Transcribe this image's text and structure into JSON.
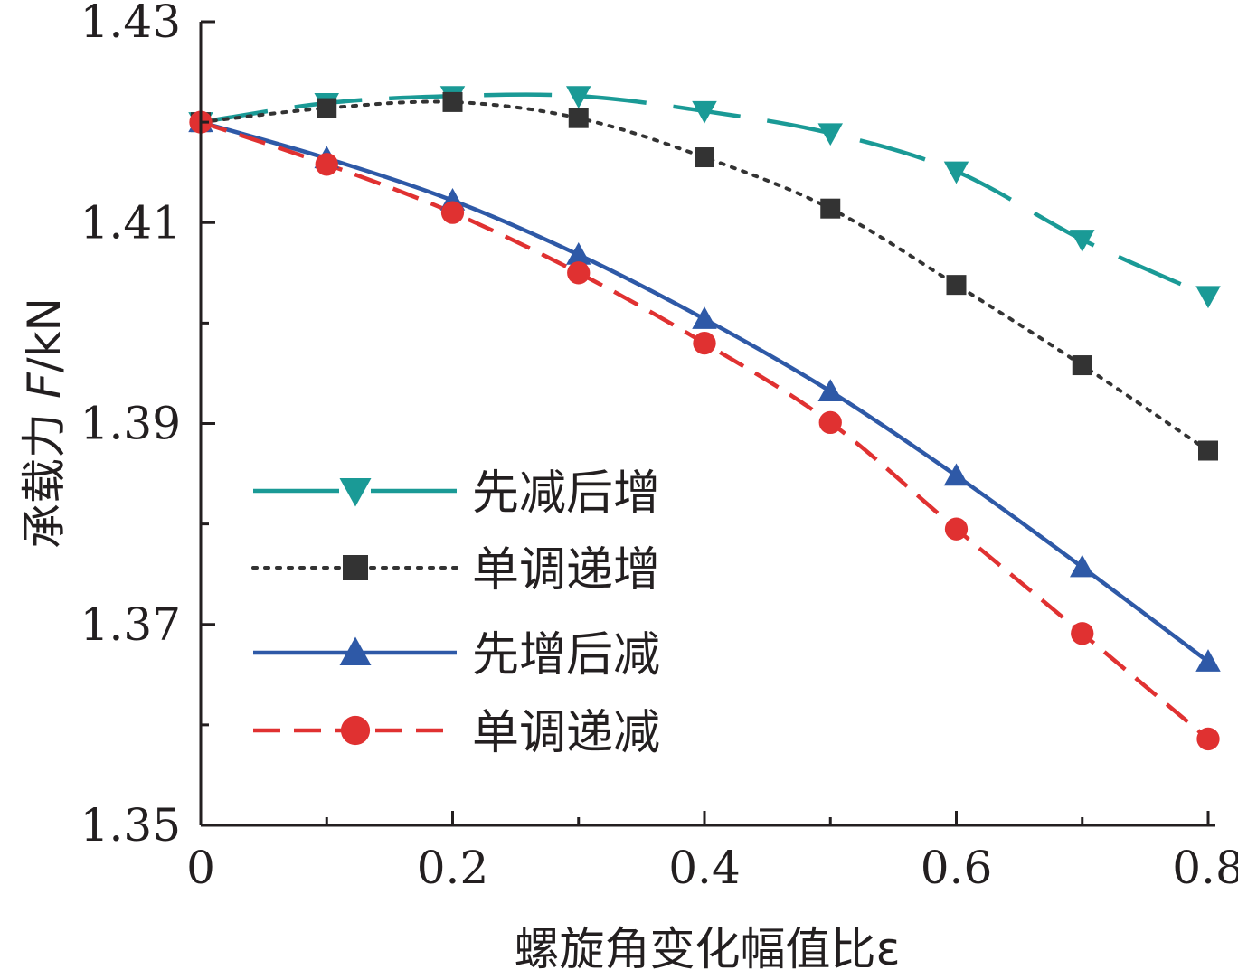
{
  "chart_data": {
    "type": "line",
    "xlabel": "螺旋角变化幅值比ε",
    "ylabel_prefix": "承载力 ",
    "ylabel_var": "F",
    "ylabel_unit": "/kN",
    "xlim": [
      0,
      0.8
    ],
    "ylim": [
      1.35,
      1.43
    ],
    "x_ticks": [
      "0",
      "0.2",
      "0.4",
      "0.6",
      "0.8"
    ],
    "y_ticks": [
      "1.35",
      "1.37",
      "1.39",
      "1.41",
      "1.43"
    ],
    "grid": false,
    "legend_position": "lower-left",
    "x": [
      0,
      0.1,
      0.2,
      0.3,
      0.4,
      0.5,
      0.6,
      0.7,
      0.8
    ],
    "series": [
      {
        "name": "先减后增",
        "color": "#1a9a96",
        "marker": "triangle-down",
        "line_style": "long-dash",
        "values": [
          1.42,
          1.4219,
          1.4226,
          1.4226,
          1.4211,
          1.4189,
          1.4151,
          1.4083,
          1.4027
        ]
      },
      {
        "name": "单调递增",
        "color": "#333333",
        "marker": "square",
        "line_style": "dotted",
        "values": [
          1.42,
          1.4214,
          1.422,
          1.4204,
          1.4165,
          1.4114,
          1.4038,
          1.3958,
          1.3873
        ]
      },
      {
        "name": "先增后减",
        "color": "#2e59a7",
        "marker": "triangle-up",
        "line_style": "solid",
        "values": [
          1.42,
          1.4164,
          1.4122,
          1.4068,
          1.4004,
          1.3932,
          1.3848,
          1.3757,
          1.3663
        ]
      },
      {
        "name": "单调递减",
        "color": "#e03131",
        "marker": "circle",
        "line_style": "dash",
        "values": [
          1.42,
          1.4158,
          1.411,
          1.405,
          1.398,
          1.3901,
          1.3795,
          1.3691,
          1.3586
        ]
      }
    ]
  }
}
